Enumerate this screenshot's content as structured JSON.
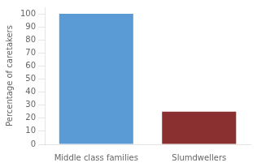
{
  "chart_data": {
    "type": "bar",
    "categories": [
      "Middle class families",
      "Slumdwellers"
    ],
    "values": [
      100,
      25
    ],
    "colors": [
      "#5B9BD5",
      "#8B3030"
    ],
    "ylabel": "Percentage of caretakers",
    "ylim": [
      0,
      105
    ],
    "yticks": [
      0,
      10,
      20,
      30,
      40,
      50,
      60,
      70,
      80,
      90,
      100
    ],
    "grid": false
  }
}
